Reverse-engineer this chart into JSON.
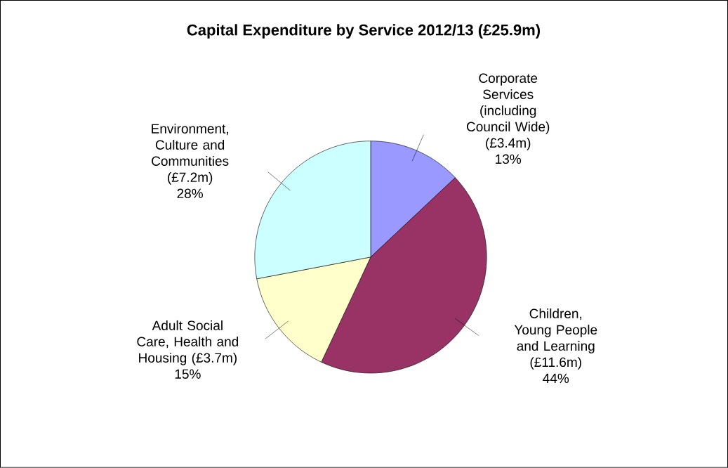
{
  "chart_data": {
    "type": "pie",
    "title": "Capital Expenditure by Service 2012/13 (£25.9m)",
    "categories": [
      "Corporate Services (including Council Wide) (£3.4m)",
      "Children, Young People and Learning (£11.6m)",
      "Adult Social Care, Health and Housing (£3.7m)",
      "Environment, Culture and Communities (£7.2m)"
    ],
    "values": [
      13,
      44,
      15,
      28
    ],
    "value_labels": [
      "13%",
      "44%",
      "15%",
      "28%"
    ],
    "colors": [
      "#9999ff",
      "#993366",
      "#ffffcc",
      "#ccffff"
    ]
  }
}
